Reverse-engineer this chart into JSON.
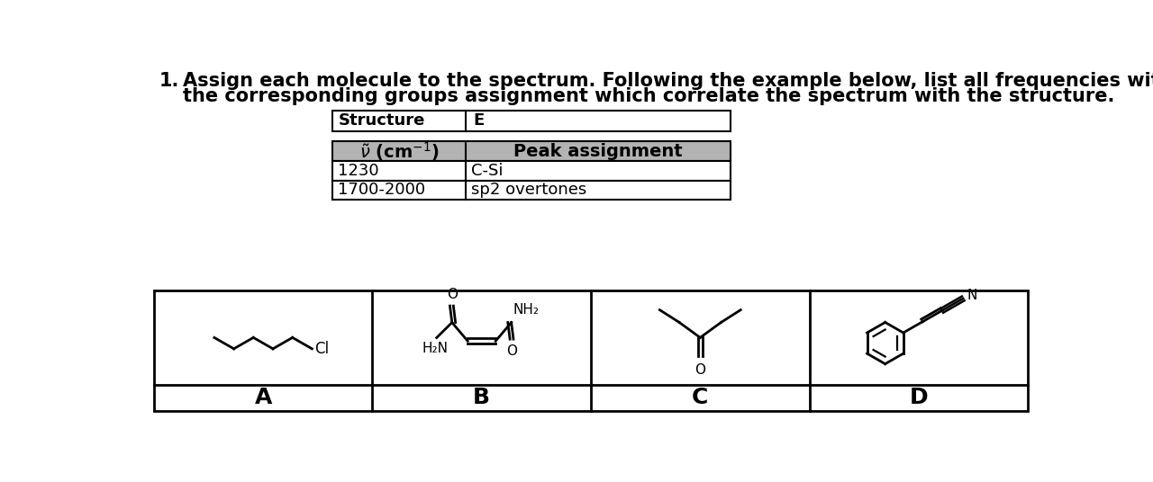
{
  "background_color": "#ffffff",
  "question_number": "1.",
  "question_text_line1": "Assign each molecule to the spectrum. Following the example below, list all frequencies with",
  "question_text_line2": "the corresponding groups assignment which correlate the spectrum with the structure.",
  "table1_col1": "Structure",
  "table1_col2": "E",
  "table2_header_col1": "v~ (cm-1)",
  "table2_header_col2": "Peak assignment",
  "table2_rows": [
    [
      "1230",
      "C-Si"
    ],
    [
      "1700-2000",
      "sp2 overtones"
    ]
  ],
  "molecule_labels": [
    "A",
    "B",
    "C",
    "D"
  ],
  "header_bg_color": "#b3b3b3",
  "table_border_color": "#000000",
  "text_color": "#000000",
  "font_size_question": 15,
  "font_size_table": 13,
  "font_size_molecule_label": 16,
  "font_size_molecule": 11
}
